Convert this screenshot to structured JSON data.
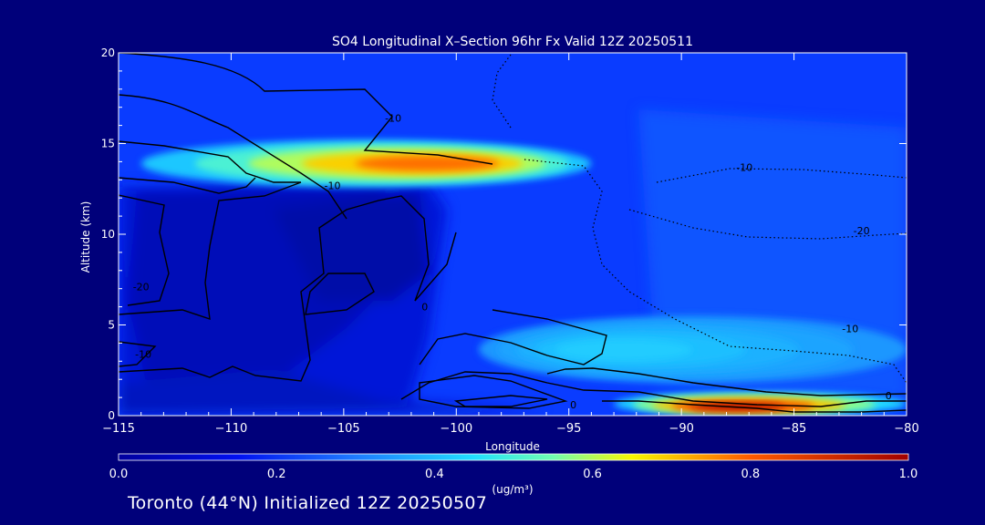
{
  "chart_data": {
    "type": "heatmap",
    "title": "SO4 Longitudinal X–Section 96hr  Fx Valid 12Z 20250511",
    "xlabel": "Longitude",
    "ylabel": "Altitude (km)",
    "xlim": [
      -115,
      -80
    ],
    "ylim": [
      0,
      20
    ],
    "x_ticks": [
      -115,
      -110,
      -105,
      -100,
      -95,
      -90,
      -85,
      -80
    ],
    "y_ticks": [
      0,
      5,
      10,
      15,
      20
    ],
    "colorbar": {
      "label": "(ug/m³)",
      "ticks": [
        "0.0",
        "0.2",
        "0.4",
        "0.6",
        "0.8",
        "1.0"
      ],
      "range": [
        0,
        1
      ]
    },
    "features": [
      {
        "name": "upper layer",
        "lon_min": -114,
        "lon_max": -94,
        "alt_min": 12.6,
        "alt_max": 15.2,
        "peak_lon": -100,
        "peak_alt": 13.9,
        "peak_value": 0.78
      },
      {
        "name": "mid-level plume",
        "lon_min": -99,
        "lon_max": -80,
        "alt_min": 1.8,
        "alt_max": 5.5,
        "peak_lon": -94,
        "peak_alt": 3.6,
        "peak_value": 0.42
      },
      {
        "name": "surface plume",
        "lon_min": -93,
        "lon_max": -80,
        "alt_min": 0,
        "alt_max": 1.3,
        "peak_lon": -88,
        "peak_alt": 0.4,
        "peak_value": 0.95
      }
    ],
    "contour_labels": [
      {
        "text": "-10",
        "lon": -102.8,
        "alt": 16.2
      },
      {
        "text": "-10",
        "lon": -105.5,
        "alt": 12.5
      },
      {
        "text": "-10",
        "lon": -87.2,
        "alt": 13.5
      },
      {
        "text": "-20",
        "lon": -82.0,
        "alt": 10.0
      },
      {
        "text": "-20",
        "lon": -114.0,
        "alt": 6.9
      },
      {
        "text": "0",
        "lon": -101.4,
        "alt": 5.8
      },
      {
        "text": "-10",
        "lon": -113.9,
        "alt": 3.2
      },
      {
        "text": "-10",
        "lon": -82.5,
        "alt": 4.6
      },
      {
        "text": "0",
        "lon": -80.8,
        "alt": 0.9
      },
      {
        "text": "0",
        "lon": -94.8,
        "alt": 0.4
      }
    ]
  },
  "footer_text": "Toronto (44°N) Initialized 12Z 20250507"
}
